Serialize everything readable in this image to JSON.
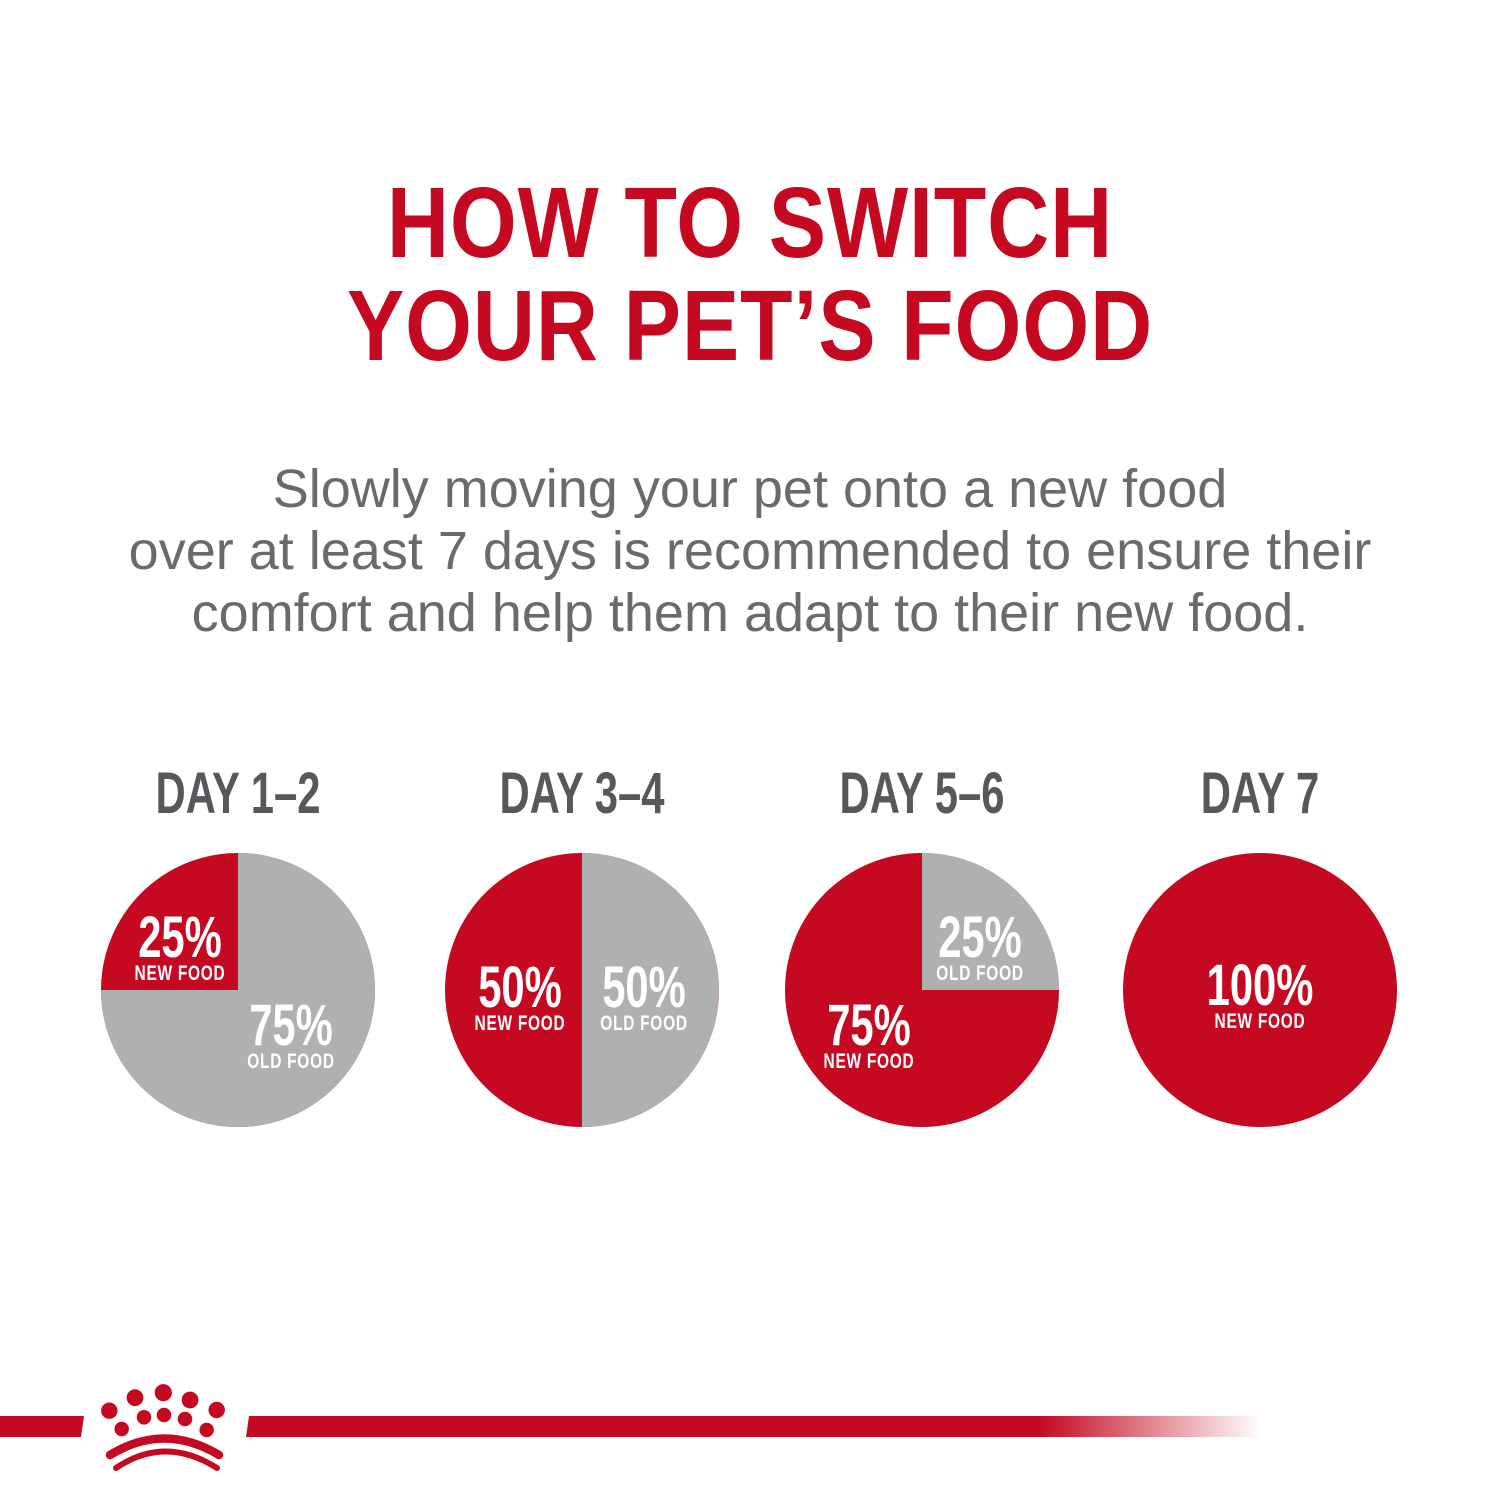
{
  "title": {
    "line1": "HOW TO SWITCH",
    "line2": "YOUR PET’S FOOD"
  },
  "intro": {
    "line1": "Slowly moving your pet onto a new food",
    "line2": "over at least 7 days is recommended to ensure their",
    "line3": "comfort and help them adapt to their new food."
  },
  "days": [
    {
      "label": "DAY 1–2",
      "primary": {
        "pct": "25%",
        "name": "NEW FOOD"
      },
      "secondary": {
        "pct": "75%",
        "name": "OLD FOOD"
      }
    },
    {
      "label": "DAY 3–4",
      "primary": {
        "pct": "50%",
        "name": "NEW FOOD"
      },
      "secondary": {
        "pct": "50%",
        "name": "OLD FOOD"
      }
    },
    {
      "label": "DAY 5–6",
      "primary": {
        "pct": "75%",
        "name": "NEW FOOD"
      },
      "secondary": {
        "pct": "25%",
        "name": "OLD FOOD"
      }
    },
    {
      "label": "DAY 7",
      "primary": {
        "pct": "100%",
        "name": "NEW FOOD"
      }
    }
  ],
  "chart_data": [
    {
      "type": "pie",
      "title": "DAY 1–2",
      "labels": [
        "NEW FOOD",
        "OLD FOOD"
      ],
      "values": [
        25,
        75
      ],
      "unit": "%",
      "colors": [
        "#C40920",
        "#AFB0B2"
      ],
      "legend": "labels inside slices"
    },
    {
      "type": "pie",
      "title": "DAY 3–4",
      "labels": [
        "NEW FOOD",
        "OLD FOOD"
      ],
      "values": [
        50,
        50
      ],
      "unit": "%",
      "colors": [
        "#C40920",
        "#AFB0B2"
      ],
      "legend": "labels inside slices"
    },
    {
      "type": "pie",
      "title": "DAY 5–6",
      "labels": [
        "NEW FOOD",
        "OLD FOOD"
      ],
      "values": [
        75,
        25
      ],
      "unit": "%",
      "colors": [
        "#C40920",
        "#AFB0B2"
      ],
      "legend": "labels inside slices"
    },
    {
      "type": "pie",
      "title": "DAY 7",
      "labels": [
        "NEW FOOD"
      ],
      "values": [
        100
      ],
      "unit": "%",
      "colors": [
        "#C40920"
      ],
      "legend": "labels inside slices"
    }
  ],
  "colors": {
    "brand_red": "#C40920",
    "pie_gray": "#AFB0B2",
    "day_heading_gray": "#57585B",
    "body_text_gray": "#6A6A6D",
    "pie_label_white": "#FFFFFF"
  },
  "footer": {
    "logo_icon": "royal-canin-crown"
  }
}
